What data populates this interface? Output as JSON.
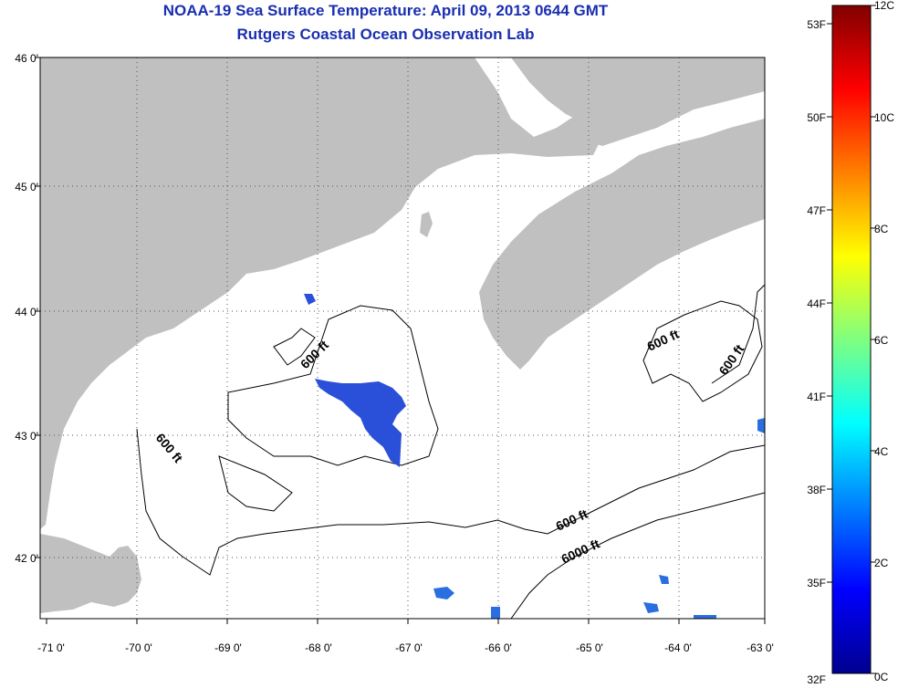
{
  "title_line1": "NOAA-19 Sea Surface Temperature:  April 09, 2013 0644 GMT",
  "title_line2": "Rutgers Coastal Ocean Observation Lab",
  "map": {
    "lon_ticks": [
      "-71 0'",
      "-70 0'",
      "-69 0'",
      "-68 0'",
      "-67 0'",
      "-66 0'",
      "-65 0'",
      "-64 0'",
      "-63 0'"
    ],
    "lat_ticks": [
      "46 0'",
      "45 0'",
      "44 0'",
      "43 0'",
      "42 0'"
    ],
    "contour_labels": [
      "600 ft",
      "600 ft",
      "600 ft",
      "600 ft",
      "600 ft",
      "6000 ft"
    ],
    "land_color": "#c0c0c0",
    "sst_color": "#2a4fd8"
  },
  "colorbar": {
    "fahrenheit_labels": [
      "53F",
      "50F",
      "47F",
      "44F",
      "41F",
      "38F",
      "35F",
      "32F"
    ],
    "celsius_labels": [
      "12C",
      "10C",
      "8C",
      "6C",
      "4C",
      "2C",
      "0C"
    ],
    "range_celsius": [
      0,
      12
    ]
  }
}
